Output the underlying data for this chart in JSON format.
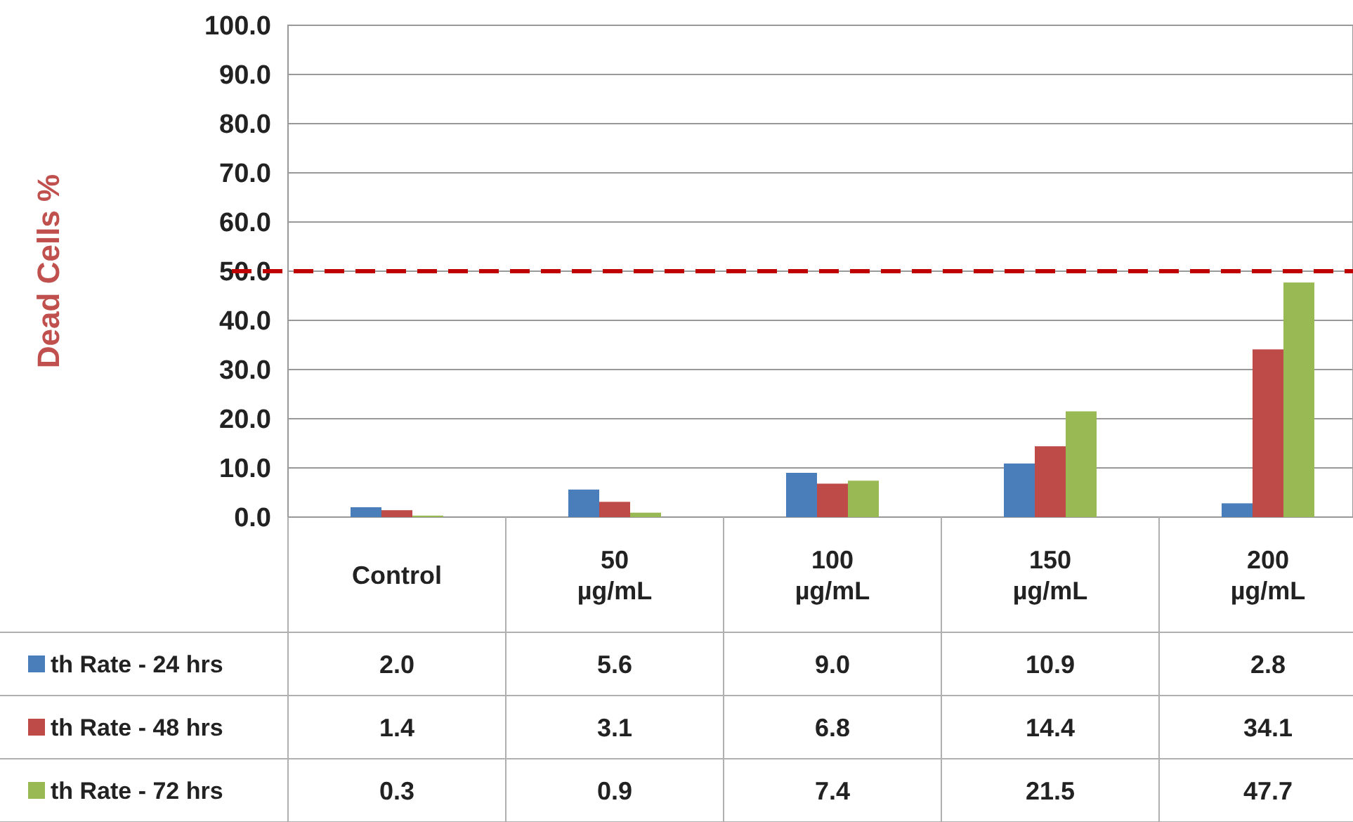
{
  "chart_data": {
    "type": "bar",
    "ylabel": "Dead Cells %",
    "categories": [
      "Control",
      "50 µg/mL",
      "100 µg/mL",
      "150 µg/mL",
      "200 µg/mL"
    ],
    "series": [
      {
        "name": "th Rate - 24 hrs",
        "color": "#4a7ebb",
        "values": [
          2.0,
          5.6,
          9.0,
          10.9,
          2.8
        ],
        "value_labels": [
          "2.0",
          "5.6",
          "9.0",
          "10.9",
          "2.8"
        ]
      },
      {
        "name": "th Rate - 48 hrs",
        "color": "#be4b48",
        "values": [
          1.4,
          3.1,
          6.8,
          14.4,
          34.1
        ],
        "value_labels": [
          "1.4",
          "3.1",
          "6.8",
          "14.4",
          "34.1"
        ]
      },
      {
        "name": "th Rate - 72 hrs",
        "color": "#98b954",
        "values": [
          0.3,
          0.9,
          7.4,
          21.5,
          47.7
        ],
        "value_labels": [
          "0.3",
          "0.9",
          "7.4",
          "21.5",
          "47.7"
        ]
      }
    ],
    "ylim": [
      0,
      100
    ],
    "yticks": [
      {
        "value": 0,
        "label": "0.0"
      },
      {
        "value": 10,
        "label": "10.0"
      },
      {
        "value": 20,
        "label": "20.0"
      },
      {
        "value": 30,
        "label": "30.0"
      },
      {
        "value": 40,
        "label": "40.0"
      },
      {
        "value": 50,
        "label": "50.0"
      },
      {
        "value": 60,
        "label": "60.0"
      },
      {
        "value": 70,
        "label": "70.0"
      },
      {
        "value": 80,
        "label": "80.0"
      },
      {
        "value": 90,
        "label": "90.0"
      },
      {
        "value": 100,
        "label": "100.0"
      }
    ],
    "grid": "y",
    "legend": "bottom left",
    "ref_lines": [
      {
        "axis": "y",
        "value": 50,
        "color": "#c00000",
        "line_style": "dashed"
      }
    ]
  }
}
